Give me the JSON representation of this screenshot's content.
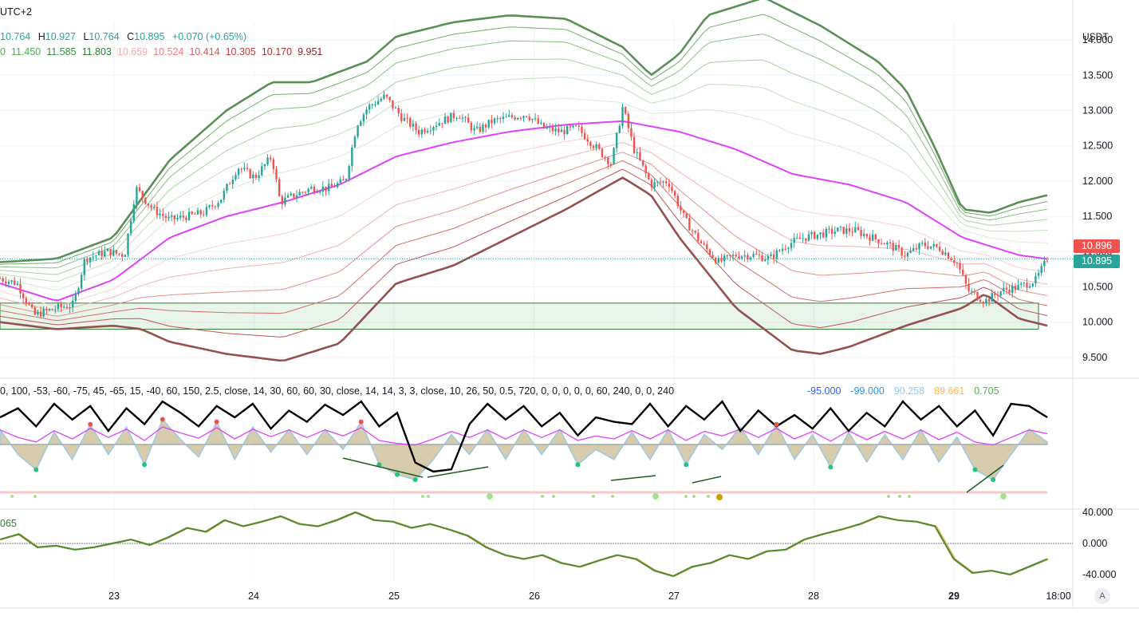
{
  "header": {
    "timezone": "UTC+2",
    "ohlc": {
      "o": "10.764",
      "h_label": "H",
      "h": "10.927",
      "l_label": "L",
      "l": "10.764",
      "c_label": "C",
      "c": "10.895",
      "change": "+0.070 (+0.65%)"
    },
    "band_values": [
      "0",
      "11.450",
      "11.585",
      "11.803",
      "10.659",
      "10.524",
      "10.414",
      "10.305",
      "10.170",
      "9.951"
    ],
    "band_colors": [
      "#4caf50",
      "#4caf50",
      "#388e3c",
      "#2e7d32",
      "#f7a8a8",
      "#ef7b7b",
      "#e05555",
      "#cc3b3b",
      "#b42a2a",
      "#8e1f1f"
    ]
  },
  "price_axis": {
    "currency": "USDT",
    "ticks": [
      "14.000",
      "13.500",
      "13.000",
      "12.500",
      "12.000",
      "11.500",
      "11.000",
      "10.500",
      "10.000",
      "9.500"
    ],
    "tags": [
      {
        "value": "10.896",
        "color": "#ef5350"
      },
      {
        "value": "10.895",
        "color": "#26a69a"
      }
    ]
  },
  "oscillator": {
    "params": "0, 100, -53, -60, -75, 45, -65, 15, -40, 60, 150, 2.5, close, 14, 30, 60, 60, 30, close, 14, 14, 3, 3, close, 10, 26, 50, 0.5, 720, 0, 0, 0, 0, 0, 60, 240, 0, 0, 240",
    "values": [
      {
        "text": "-95.000",
        "color": "#2962ff"
      },
      {
        "text": "-99.000",
        "color": "#2196f3"
      },
      {
        "text": "90.258",
        "color": "#90caf9"
      },
      {
        "text": "89.661",
        "color": "#ffb74d"
      },
      {
        "text": "0.705",
        "color": "#4caf50"
      }
    ]
  },
  "oscillator2": {
    "label": "065",
    "ticks": [
      "40.000",
      "0.000",
      "-40.000"
    ]
  },
  "time_axis": {
    "labels": [
      "23",
      "24",
      "25",
      "26",
      "27",
      "28",
      "29",
      "18:00"
    ],
    "bold_label": "29"
  },
  "auto_button": "A",
  "chart_data": [
    {
      "type": "candlestick",
      "ylim": [
        9.25,
        14.25
      ],
      "xlabels": [
        "23",
        "24",
        "25",
        "26",
        "27",
        "28",
        "29",
        "18:00"
      ],
      "close_series": [
        [
          0,
          10.62
        ],
        [
          0.3,
          10.55
        ],
        [
          0.6,
          10.1
        ],
        [
          1,
          10.2
        ],
        [
          1.3,
          10.25
        ],
        [
          1.5,
          10.9
        ],
        [
          1.9,
          11.0
        ],
        [
          2.2,
          10.95
        ],
        [
          2.4,
          11.9
        ],
        [
          2.7,
          11.6
        ],
        [
          3.0,
          11.45
        ],
        [
          3.3,
          11.5
        ],
        [
          3.6,
          11.55
        ],
        [
          3.9,
          11.75
        ],
        [
          4.2,
          12.2
        ],
        [
          4.5,
          12.05
        ],
        [
          4.8,
          12.35
        ],
        [
          4.95,
          11.7
        ],
        [
          5.2,
          11.8
        ],
        [
          5.5,
          11.9
        ],
        [
          5.8,
          11.9
        ],
        [
          6.1,
          12.0
        ],
        [
          6.3,
          12.8
        ],
        [
          6.5,
          13.05
        ],
        [
          6.8,
          13.2
        ],
        [
          7.1,
          12.9
        ],
        [
          7.4,
          12.7
        ],
        [
          7.8,
          12.85
        ],
        [
          8.1,
          12.95
        ],
        [
          8.4,
          12.7
        ],
        [
          8.7,
          12.85
        ],
        [
          9.0,
          12.9
        ],
        [
          9.3,
          12.95
        ],
        [
          9.6,
          12.75
        ],
        [
          9.9,
          12.7
        ],
        [
          10.2,
          12.75
        ],
        [
          10.5,
          12.5
        ],
        [
          10.8,
          12.25
        ],
        [
          11.0,
          13.05
        ],
        [
          11.2,
          12.45
        ],
        [
          11.5,
          11.95
        ],
        [
          11.8,
          12.0
        ],
        [
          12.1,
          11.45
        ],
        [
          12.4,
          11.1
        ],
        [
          12.7,
          10.85
        ],
        [
          13.0,
          10.95
        ],
        [
          13.3,
          10.95
        ],
        [
          13.6,
          10.9
        ],
        [
          13.9,
          11.1
        ],
        [
          14.2,
          11.2
        ],
        [
          14.5,
          11.25
        ],
        [
          14.8,
          11.3
        ],
        [
          15.1,
          11.3
        ],
        [
          15.4,
          11.2
        ],
        [
          15.7,
          11.1
        ],
        [
          16.0,
          10.95
        ],
        [
          16.3,
          11.1
        ],
        [
          16.6,
          11.05
        ],
        [
          16.9,
          10.85
        ],
        [
          17.1,
          10.45
        ],
        [
          17.4,
          10.3
        ],
        [
          17.7,
          10.45
        ],
        [
          18.0,
          10.5
        ],
        [
          18.3,
          10.6
        ],
        [
          18.5,
          10.896
        ]
      ],
      "pink_baseline": [
        [
          0,
          10.55
        ],
        [
          1,
          10.3
        ],
        [
          2,
          10.6
        ],
        [
          3,
          11.2
        ],
        [
          4,
          11.5
        ],
        [
          5,
          11.7
        ],
        [
          6,
          11.95
        ],
        [
          7,
          12.35
        ],
        [
          8,
          12.55
        ],
        [
          9,
          12.7
        ],
        [
          10,
          12.8
        ],
        [
          11,
          12.85
        ],
        [
          12,
          12.7
        ],
        [
          13,
          12.45
        ],
        [
          14,
          12.1
        ],
        [
          15,
          11.95
        ],
        [
          16,
          11.7
        ],
        [
          17,
          11.2
        ],
        [
          18,
          10.95
        ],
        [
          18.5,
          10.896
        ]
      ],
      "upper_band": [
        [
          0,
          10.85
        ],
        [
          1,
          10.9
        ],
        [
          2,
          11.2
        ],
        [
          3,
          12.3
        ],
        [
          4,
          13.0
        ],
        [
          4.8,
          13.4
        ],
        [
          5.5,
          13.4
        ],
        [
          6.5,
          13.7
        ],
        [
          7,
          14.05
        ],
        [
          8,
          14.25
        ],
        [
          9,
          14.35
        ],
        [
          10,
          14.3
        ],
        [
          11,
          13.9
        ],
        [
          11.5,
          13.5
        ],
        [
          12,
          13.8
        ],
        [
          12.5,
          14.35
        ],
        [
          13.5,
          14.6
        ],
        [
          14.5,
          14.2
        ],
        [
          15.5,
          13.7
        ],
        [
          16,
          13.3
        ],
        [
          16.5,
          12.5
        ],
        [
          17,
          11.6
        ],
        [
          17.5,
          11.55
        ],
        [
          18,
          11.7
        ],
        [
          18.5,
          11.8
        ]
      ],
      "lower_band": [
        [
          0,
          10.0
        ],
        [
          1,
          9.9
        ],
        [
          2,
          9.95
        ],
        [
          2.5,
          9.9
        ],
        [
          3,
          9.72
        ],
        [
          4,
          9.55
        ],
        [
          5,
          9.45
        ],
        [
          6,
          9.7
        ],
        [
          7,
          10.55
        ],
        [
          8,
          10.8
        ],
        [
          9,
          11.2
        ],
        [
          10,
          11.6
        ],
        [
          11,
          12.05
        ],
        [
          11.5,
          11.8
        ],
        [
          12,
          11.2
        ],
        [
          13,
          10.2
        ],
        [
          14,
          9.6
        ],
        [
          14.5,
          9.55
        ],
        [
          15,
          9.65
        ],
        [
          16,
          9.95
        ],
        [
          17,
          10.2
        ],
        [
          17.4,
          10.4
        ],
        [
          18,
          10.05
        ],
        [
          18.5,
          9.95
        ]
      ],
      "support_zone": {
        "low": 9.9,
        "high": 10.27,
        "color": "#4caf50"
      }
    },
    {
      "type": "line",
      "title": "",
      "ylim": [
        -100,
        100
      ],
      "series": [
        {
          "values": [
            60,
            80,
            40,
            90,
            55,
            85,
            30,
            80,
            45,
            95,
            70,
            40,
            85,
            60,
            90,
            35,
            75,
            50,
            88,
            65,
            95,
            40,
            70,
            -40,
            -60,
            -55,
            45,
            90,
            55,
            85,
            40,
            70,
            20,
            60,
            50,
            45,
            90,
            40,
            85,
            55,
            95,
            30,
            75,
            40,
            65,
            35,
            80,
            30,
            70,
            40,
            95,
            55,
            85,
            40,
            75,
            20,
            90,
            85,
            60
          ]
        },
        {
          "values": [
            30,
            -20,
            -50,
            25,
            -30,
            40,
            -20,
            35,
            -40,
            50,
            10,
            -25,
            45,
            -30,
            35,
            -15,
            30,
            -20,
            30,
            -10,
            45,
            -40,
            -60,
            -70,
            -30,
            20,
            -20,
            30,
            -30,
            30,
            -20,
            30,
            -40,
            -10,
            -30,
            25,
            -30,
            30,
            -40,
            20,
            -10,
            35,
            -20,
            40,
            -30,
            20,
            -45,
            25,
            -35,
            20,
            -30,
            30,
            -35,
            15,
            -50,
            -70,
            -20,
            30,
            5
          ]
        }
      ]
    },
    {
      "type": "line",
      "ylim": [
        -50,
        50
      ],
      "series": [
        {
          "values": [
            5,
            12,
            -5,
            -3,
            -8,
            -5,
            0,
            5,
            -2,
            8,
            20,
            15,
            30,
            22,
            28,
            35,
            25,
            22,
            30,
            40,
            30,
            28,
            20,
            25,
            18,
            10,
            -5,
            -15,
            -20,
            -15,
            -25,
            -30,
            -22,
            -15,
            -20,
            -35,
            -42,
            -30,
            -25,
            -15,
            -20,
            -10,
            -8,
            5,
            12,
            18,
            25,
            35,
            30,
            28,
            22,
            -20,
            -38,
            -35,
            -40,
            -30,
            -20
          ]
        }
      ]
    }
  ],
  "colors": {
    "up": "#26a69a",
    "down": "#ef5350",
    "pink": "#e040fb",
    "band_green": "#4e8a4b",
    "band_red": "#8d3f3f",
    "grid": "#f0f3fa"
  }
}
